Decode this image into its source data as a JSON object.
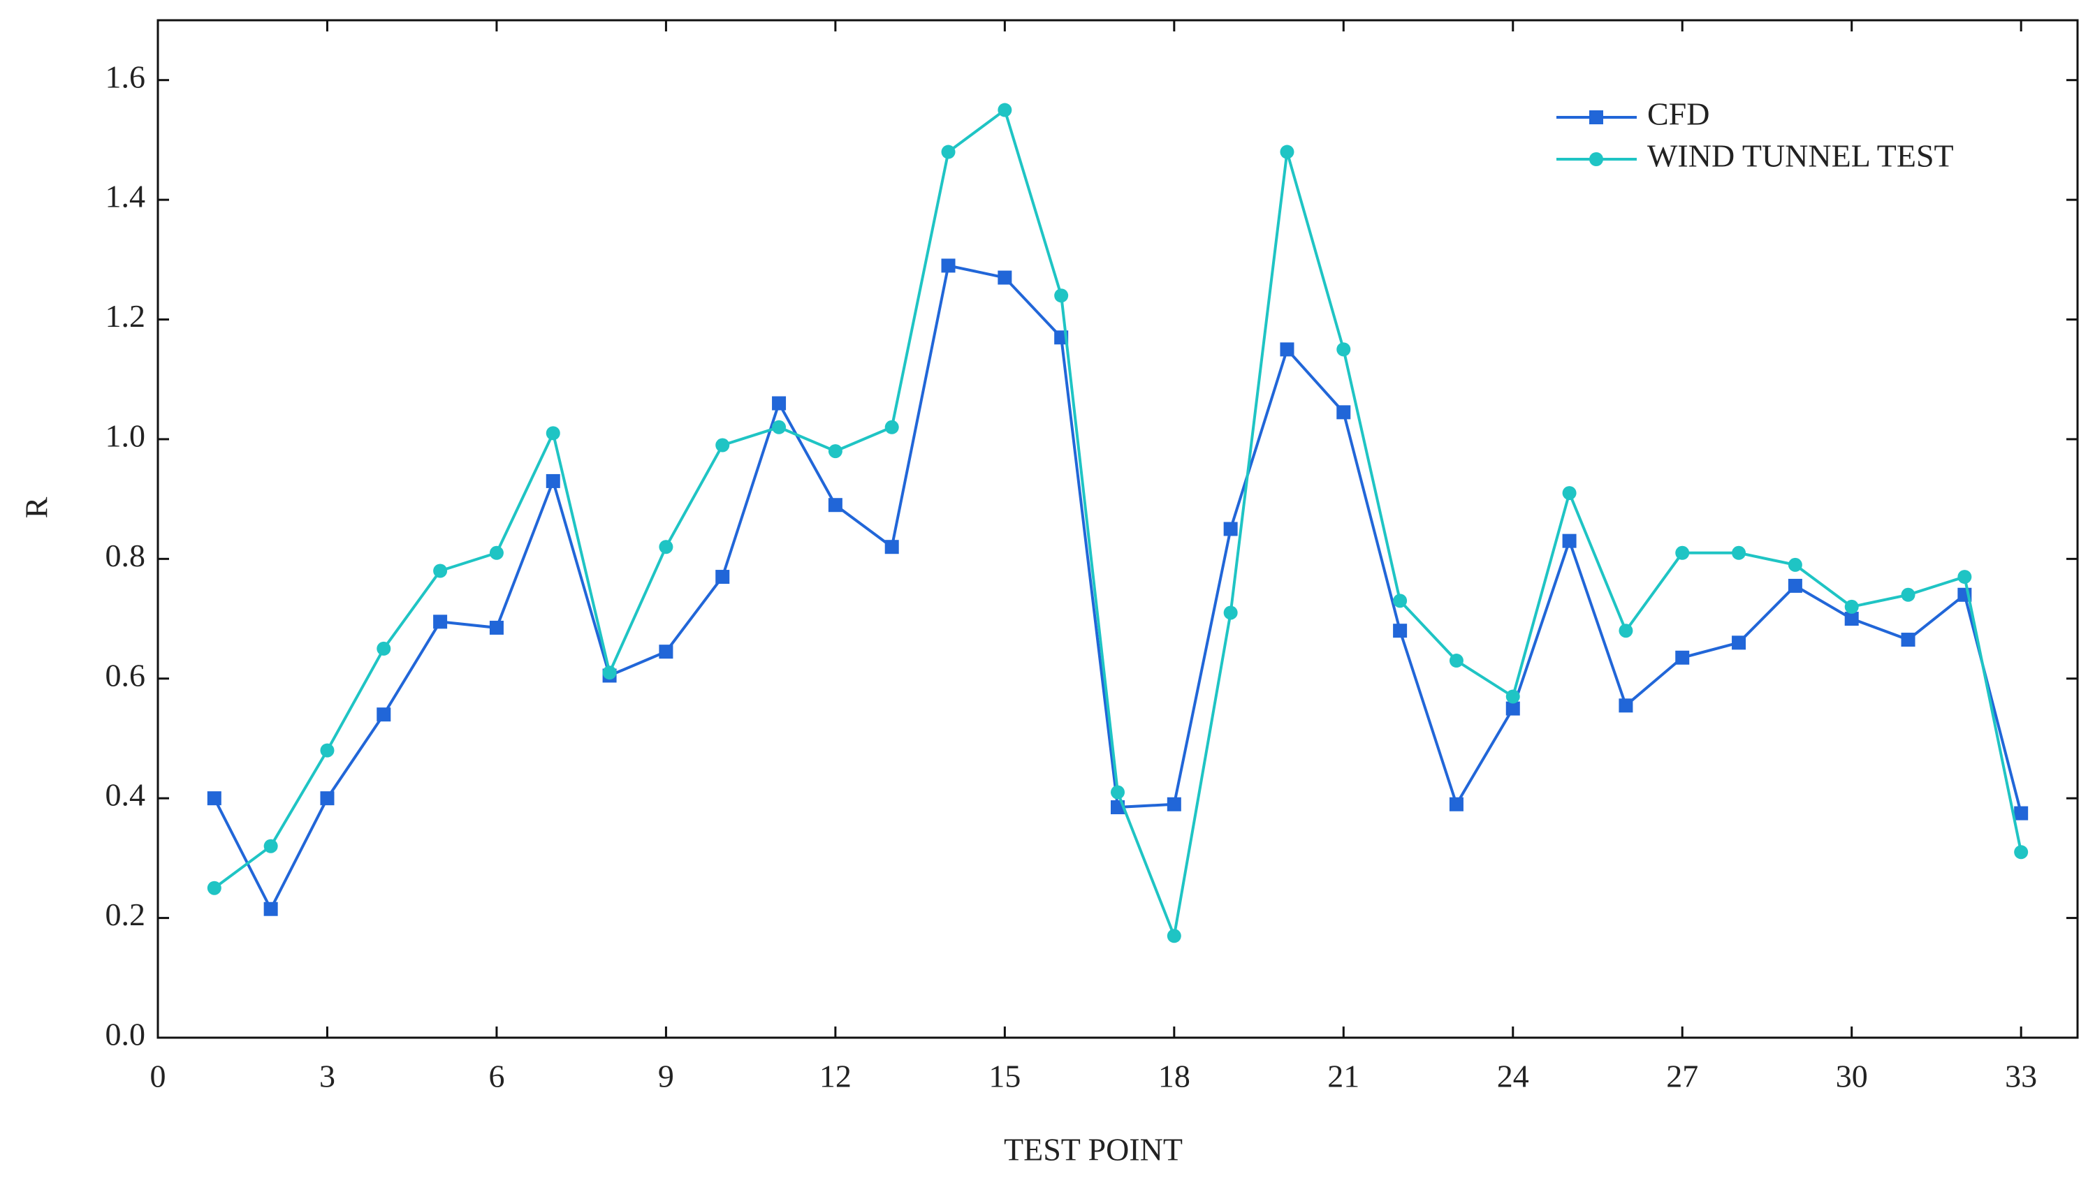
{
  "chart_data": {
    "type": "line",
    "xlabel": "TEST POINT",
    "ylabel": "R",
    "x": [
      1,
      2,
      3,
      4,
      5,
      6,
      7,
      8,
      9,
      10,
      11,
      12,
      13,
      14,
      15,
      16,
      17,
      18,
      19,
      20,
      21,
      22,
      23,
      24,
      25,
      26,
      27,
      28,
      29,
      30,
      31,
      32,
      33
    ],
    "series": [
      {
        "name": "CFD",
        "color": "#2166d8",
        "marker": "square",
        "values": [
          0.4,
          0.215,
          0.4,
          0.54,
          0.695,
          0.685,
          0.93,
          0.605,
          0.645,
          0.77,
          1.06,
          0.89,
          0.82,
          1.29,
          1.27,
          1.17,
          0.385,
          0.39,
          0.85,
          1.15,
          1.045,
          0.68,
          0.39,
          0.55,
          0.83,
          0.555,
          0.635,
          0.66,
          0.755,
          0.7,
          0.665,
          0.74,
          0.375
        ]
      },
      {
        "name": "WIND TUNNEL TEST",
        "color": "#1fc4c4",
        "marker": "circle",
        "values": [
          0.25,
          0.32,
          0.48,
          0.65,
          0.78,
          0.81,
          1.01,
          0.61,
          0.82,
          0.99,
          1.02,
          0.98,
          1.02,
          1.48,
          1.55,
          1.24,
          0.41,
          0.17,
          0.71,
          1.48,
          1.15,
          0.73,
          0.63,
          0.57,
          0.91,
          0.68,
          0.81,
          0.81,
          0.79,
          0.72,
          0.74,
          0.77,
          0.31
        ]
      }
    ],
    "xlim": [
      0,
      34
    ],
    "xticks": [
      0,
      3,
      6,
      9,
      12,
      15,
      18,
      21,
      24,
      27,
      30,
      33
    ],
    "ylim": [
      0,
      1.7
    ],
    "yticks": [
      {
        "value": 0,
        "label": "0.0"
      },
      {
        "value": 0.2,
        "label": "0.2"
      },
      {
        "value": 0.4,
        "label": "0.4"
      },
      {
        "value": 0.6,
        "label": "0.6"
      },
      {
        "value": 0.8,
        "label": "0.8"
      },
      {
        "value": 1.0,
        "label": "1.0"
      },
      {
        "value": 1.2,
        "label": "1.2"
      },
      {
        "value": 1.4,
        "label": "1.4"
      },
      {
        "value": 1.6,
        "label": "1.6"
      }
    ],
    "grid": false,
    "legend": "upper right"
  }
}
